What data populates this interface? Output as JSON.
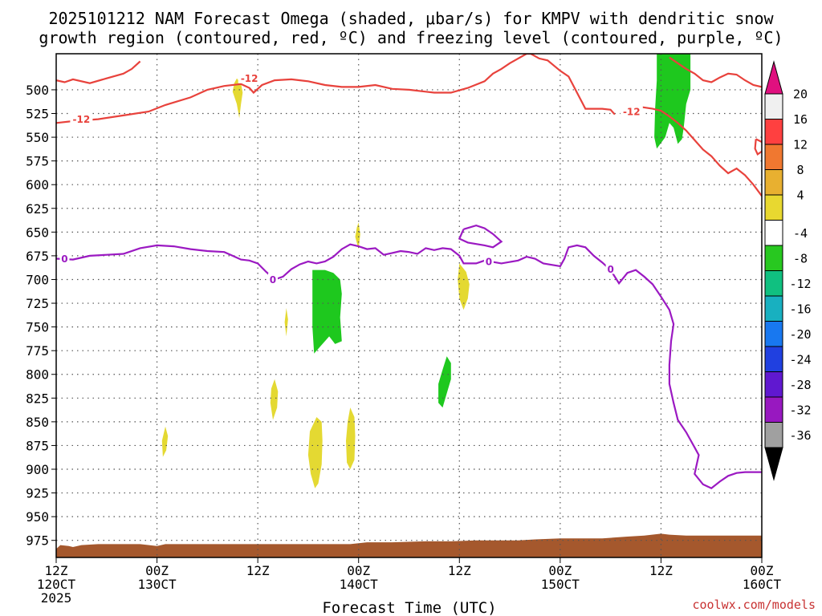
{
  "chart_data": {
    "type": "heatmap",
    "title_line1": "2025101212 NAM Forecast Omega (shaded, μbar/s) for KMPV with dendritic snow",
    "title_line2": "growth region (contoured, red, ºC) and freezing level (contoured, purple, ºC)",
    "xlabel": "Forecast Time (UTC)",
    "credit": "coolwx.com/models",
    "x_range_hours": [
      0,
      84
    ],
    "y_range_mb": [
      462,
      993
    ],
    "y_ticks": [
      500,
      525,
      550,
      575,
      600,
      625,
      650,
      675,
      700,
      725,
      750,
      775,
      800,
      825,
      850,
      875,
      900,
      925,
      950,
      975
    ],
    "x_ticks": [
      {
        "h": 0,
        "line1": "12Z",
        "line2": "120CT",
        "line3": "2025"
      },
      {
        "h": 12,
        "line1": "00Z",
        "line2": "130CT",
        "line3": ""
      },
      {
        "h": 24,
        "line1": "12Z",
        "line2": "",
        "line3": ""
      },
      {
        "h": 36,
        "line1": "00Z",
        "line2": "140CT",
        "line3": ""
      },
      {
        "h": 48,
        "line1": "12Z",
        "line2": "",
        "line3": ""
      },
      {
        "h": 60,
        "line1": "00Z",
        "line2": "150CT",
        "line3": ""
      },
      {
        "h": 72,
        "line1": "12Z",
        "line2": "",
        "line3": ""
      },
      {
        "h": 84,
        "line1": "00Z",
        "line2": "160CT",
        "line3": ""
      }
    ],
    "colorbar": {
      "labels": [
        "20",
        "16",
        "12",
        "8",
        "4",
        "-4",
        "-8",
        "-12",
        "-16",
        "-20",
        "-24",
        "-28",
        "-32",
        "-36"
      ],
      "colors": [
        "#f0f0f0",
        "#ff4040",
        "#f07830",
        "#e8b030",
        "#e8d830",
        "#ffffff",
        "#28c820",
        "#10c080",
        "#18b0c0",
        "#1878f0",
        "#2040e0",
        "#6018d0",
        "#9818c0",
        "#a0a0a0"
      ],
      "top_arrow_color": "#e0107f",
      "bottom_arrow_color": "#000000"
    },
    "contours": {
      "dgz_minus12": {
        "color": "#e8423c",
        "label": "-12",
        "lower_points": [
          [
            0,
            535
          ],
          [
            2,
            533
          ],
          [
            5,
            531
          ],
          [
            8,
            527
          ],
          [
            11,
            523
          ],
          [
            13,
            516
          ],
          [
            16,
            508
          ],
          [
            18,
            500
          ],
          [
            20,
            496
          ],
          [
            22,
            494
          ],
          [
            23,
            498
          ],
          [
            23.5,
            503
          ],
          [
            24.5,
            495
          ],
          [
            26,
            490
          ],
          [
            28,
            489
          ],
          [
            30,
            491
          ],
          [
            32,
            495
          ],
          [
            34,
            497
          ],
          [
            36,
            497
          ],
          [
            38,
            495
          ],
          [
            40,
            499
          ],
          [
            42,
            500
          ],
          [
            44,
            502
          ],
          [
            45,
            503
          ],
          [
            47,
            503
          ],
          [
            49,
            498
          ],
          [
            51,
            491
          ],
          [
            52,
            483
          ],
          [
            53,
            478
          ],
          [
            54,
            472
          ],
          [
            56,
            462
          ],
          [
            56.5,
            462
          ]
        ],
        "upper_points": [
          [
            56.5,
            462
          ],
          [
            57.5,
            467
          ],
          [
            58.5,
            469
          ],
          [
            60,
            480
          ],
          [
            61,
            486
          ],
          [
            63,
            520
          ],
          [
            65,
            520
          ],
          [
            66,
            521
          ],
          [
            66.5,
            526
          ]
        ],
        "right_points": [
          [
            69.5,
            518
          ],
          [
            71,
            520
          ],
          [
            72,
            522
          ],
          [
            73,
            528
          ],
          [
            74,
            535
          ],
          [
            75,
            543
          ],
          [
            76,
            553
          ],
          [
            77,
            563
          ],
          [
            78,
            570
          ],
          [
            79,
            580
          ],
          [
            80,
            588
          ],
          [
            81,
            583
          ],
          [
            82,
            590
          ],
          [
            83,
            600
          ],
          [
            84,
            612
          ]
        ],
        "topleft_points": [
          [
            0,
            490
          ],
          [
            1,
            492
          ],
          [
            2,
            489
          ],
          [
            4,
            493
          ],
          [
            6,
            488
          ],
          [
            8,
            483
          ],
          [
            9,
            478
          ],
          [
            10,
            470
          ]
        ],
        "topright_points": [
          [
            73,
            466
          ],
          [
            75,
            478
          ],
          [
            76,
            483
          ],
          [
            77,
            490
          ],
          [
            78,
            492
          ],
          [
            79,
            487
          ],
          [
            80,
            483
          ],
          [
            81,
            484
          ],
          [
            82,
            490
          ],
          [
            83,
            495
          ],
          [
            84,
            497
          ]
        ]
      },
      "freezing_0": {
        "color": "#9b19c2",
        "label": "0",
        "points": [
          [
            0,
            678
          ],
          [
            2,
            679
          ],
          [
            4,
            675
          ],
          [
            6,
            674
          ],
          [
            8,
            673
          ],
          [
            10,
            667
          ],
          [
            12,
            664
          ],
          [
            14,
            665
          ],
          [
            16,
            668
          ],
          [
            18,
            670
          ],
          [
            20,
            671
          ],
          [
            21,
            675
          ],
          [
            22,
            679
          ],
          [
            23,
            680
          ],
          [
            24,
            683
          ],
          [
            25,
            692
          ],
          [
            26,
            700
          ],
          [
            27,
            697
          ],
          [
            28,
            689
          ],
          [
            29,
            684
          ],
          [
            30,
            681
          ],
          [
            31,
            683
          ],
          [
            32,
            681
          ],
          [
            33,
            676
          ],
          [
            34,
            668
          ],
          [
            35,
            663
          ],
          [
            36,
            665
          ],
          [
            37,
            668
          ],
          [
            38,
            667
          ],
          [
            39,
            674
          ],
          [
            40,
            672
          ],
          [
            41,
            670
          ],
          [
            42,
            671
          ],
          [
            43,
            673
          ],
          [
            44,
            667
          ],
          [
            45,
            669
          ],
          [
            46,
            667
          ],
          [
            47,
            668
          ],
          [
            48,
            675
          ],
          [
            48.5,
            683
          ],
          [
            50,
            683
          ],
          [
            51,
            680
          ],
          [
            53,
            683
          ],
          [
            55,
            680
          ],
          [
            56,
            676
          ],
          [
            57,
            678
          ],
          [
            58,
            683
          ],
          [
            60,
            686
          ],
          [
            60.5,
            678
          ],
          [
            61,
            666
          ],
          [
            62,
            664
          ],
          [
            63,
            666
          ],
          [
            64,
            675
          ],
          [
            65,
            682
          ],
          [
            66,
            690
          ],
          [
            67,
            704
          ],
          [
            68,
            693
          ],
          [
            69,
            690
          ],
          [
            70,
            697
          ],
          [
            71,
            705
          ],
          [
            72,
            718
          ],
          [
            73,
            732
          ],
          [
            73.5,
            747
          ],
          [
            73.2,
            765
          ],
          [
            73,
            790
          ],
          [
            73,
            810
          ],
          [
            73.5,
            830
          ],
          [
            74,
            848
          ],
          [
            75,
            861
          ],
          [
            76,
            877
          ],
          [
            76.5,
            885
          ],
          [
            76,
            905
          ],
          [
            77,
            916
          ],
          [
            78,
            920
          ],
          [
            79,
            913
          ],
          [
            80,
            907
          ],
          [
            81,
            904
          ],
          [
            82,
            903
          ],
          [
            84,
            903
          ]
        ]
      },
      "freezing_loop": [
        [
          48.5,
          647
        ],
        [
          50,
          643
        ],
        [
          51,
          646
        ],
        [
          52,
          652
        ],
        [
          53,
          660
        ],
        [
          52,
          666
        ],
        [
          51,
          664
        ],
        [
          49,
          661
        ],
        [
          48,
          657
        ],
        [
          48.5,
          647
        ]
      ],
      "minus12_loop": [
        [
          83.3,
          552
        ],
        [
          84,
          555
        ],
        [
          84.3,
          560
        ],
        [
          84,
          565
        ],
        [
          83.5,
          568
        ],
        [
          83.2,
          562
        ],
        [
          83.3,
          552
        ]
      ]
    },
    "shaded_areas": [
      {
        "level": "green",
        "points": [
          [
            71.5,
            462
          ],
          [
            74,
            462
          ],
          [
            75.5,
            462
          ],
          [
            75.5,
            500
          ],
          [
            75,
            515
          ],
          [
            74.7,
            540
          ],
          [
            74.5,
            552
          ],
          [
            74,
            557
          ],
          [
            73.5,
            540
          ],
          [
            73,
            535
          ],
          [
            72.5,
            550
          ],
          [
            71.5,
            562
          ],
          [
            71.2,
            550
          ],
          [
            71.3,
            520
          ],
          [
            71.5,
            490
          ]
        ]
      },
      {
        "level": "green",
        "points": [
          [
            30.5,
            690
          ],
          [
            32,
            690
          ],
          [
            33,
            693
          ],
          [
            33.8,
            700
          ],
          [
            34,
            715
          ],
          [
            33.8,
            740
          ],
          [
            34,
            765
          ],
          [
            33.2,
            768
          ],
          [
            32.5,
            760
          ],
          [
            31.5,
            770
          ],
          [
            30.7,
            778
          ],
          [
            30.5,
            750
          ],
          [
            30.5,
            720
          ]
        ]
      },
      {
        "level": "green",
        "points": [
          [
            46.5,
            781
          ],
          [
            47,
            788
          ],
          [
            47,
            805
          ],
          [
            46.5,
            820
          ],
          [
            46,
            835
          ],
          [
            45.5,
            830
          ],
          [
            45.5,
            810
          ],
          [
            46,
            795
          ]
        ]
      },
      {
        "level": "yellow",
        "points": [
          [
            21.5,
            488
          ],
          [
            22,
            493
          ],
          [
            22.2,
            503
          ],
          [
            22,
            515
          ],
          [
            21.8,
            530
          ],
          [
            21.5,
            515
          ],
          [
            21,
            502
          ],
          [
            21.2,
            493
          ]
        ]
      },
      {
        "level": "yellow",
        "points": [
          [
            36,
            640
          ],
          [
            36.2,
            652
          ],
          [
            36,
            668
          ],
          [
            35.6,
            655
          ],
          [
            35.8,
            645
          ]
        ]
      },
      {
        "level": "yellow",
        "points": [
          [
            48,
            683
          ],
          [
            48.8,
            692
          ],
          [
            49.2,
            705
          ],
          [
            49,
            720
          ],
          [
            48.5,
            732
          ],
          [
            48,
            720
          ],
          [
            47.8,
            700
          ]
        ]
      },
      {
        "level": "yellow",
        "points": [
          [
            27.4,
            730
          ],
          [
            27.6,
            742
          ],
          [
            27.4,
            760
          ],
          [
            27.2,
            745
          ]
        ]
      },
      {
        "level": "yellow",
        "points": [
          [
            26,
            805
          ],
          [
            26.4,
            818
          ],
          [
            26.3,
            835
          ],
          [
            25.8,
            848
          ],
          [
            25.5,
            830
          ],
          [
            25.6,
            815
          ]
        ]
      },
      {
        "level": "yellow",
        "points": [
          [
            31,
            845
          ],
          [
            31.6,
            850
          ],
          [
            31.7,
            870
          ],
          [
            31.6,
            895
          ],
          [
            31.2,
            915
          ],
          [
            30.8,
            920
          ],
          [
            30.3,
            905
          ],
          [
            30,
            885
          ],
          [
            30.2,
            860
          ]
        ]
      },
      {
        "level": "yellow",
        "points": [
          [
            35,
            835
          ],
          [
            35.5,
            845
          ],
          [
            35.6,
            865
          ],
          [
            35.5,
            890
          ],
          [
            35,
            900
          ],
          [
            34.6,
            893
          ],
          [
            34.5,
            870
          ],
          [
            34.7,
            850
          ]
        ]
      },
      {
        "level": "yellow",
        "points": [
          [
            13,
            855
          ],
          [
            13.3,
            865
          ],
          [
            13.1,
            880
          ],
          [
            12.7,
            887
          ],
          [
            12.6,
            870
          ]
        ]
      }
    ],
    "terrain": {
      "color": "#a5582d",
      "bottom_mb": 993,
      "top_points": [
        [
          0,
          984
        ],
        [
          0.5,
          980
        ],
        [
          1.5,
          981
        ],
        [
          2,
          982
        ],
        [
          3,
          980
        ],
        [
          5,
          979
        ],
        [
          10,
          979
        ],
        [
          12,
          981
        ],
        [
          13,
          979
        ],
        [
          20,
          979
        ],
        [
          30,
          979
        ],
        [
          35,
          979
        ],
        [
          37,
          977
        ],
        [
          40,
          977
        ],
        [
          44,
          976
        ],
        [
          47,
          976
        ],
        [
          50,
          975
        ],
        [
          55,
          975
        ],
        [
          57,
          974
        ],
        [
          60,
          973
        ],
        [
          65,
          973
        ],
        [
          68,
          971
        ],
        [
          70,
          970
        ],
        [
          72,
          968
        ],
        [
          73,
          969
        ],
        [
          75,
          970
        ],
        [
          78,
          970
        ],
        [
          84,
          970
        ]
      ]
    }
  }
}
